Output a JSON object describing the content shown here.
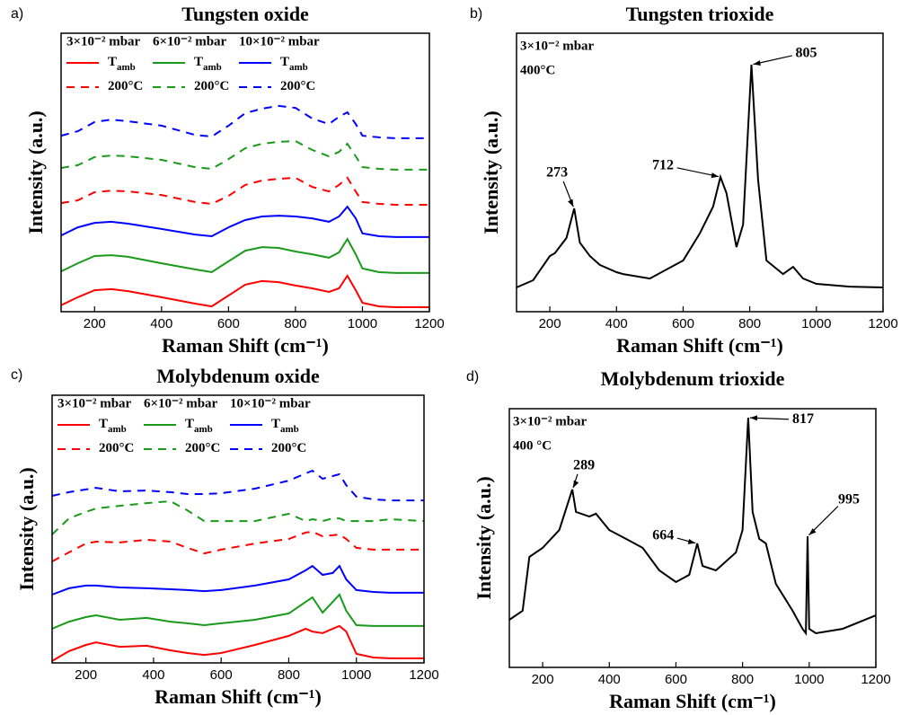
{
  "chart_data": [
    {
      "type": "line",
      "panel_label": "a)",
      "title": "Tungsten oxide",
      "x_label": "Raman Shift (cm⁻¹)",
      "y_label": "Intensity (a.u.)",
      "legend_headers": [
        "3×10⁻² mbar",
        "6×10⁻² mbar",
        "10×10⁻² mbar"
      ],
      "xlim": [
        100,
        1200
      ],
      "ylim": [
        0,
        100
      ],
      "xticks": [
        200,
        400,
        600,
        800,
        1000,
        1200
      ],
      "x": [
        100,
        150,
        200,
        250,
        300,
        400,
        500,
        550,
        600,
        650,
        700,
        750,
        800,
        850,
        900,
        930,
        955,
        980,
        1000,
        1050,
        1100,
        1200
      ],
      "series": [
        {
          "name": "T",
          "subscript": "amb",
          "color": "#ff0000",
          "dashed": false,
          "values": [
            2.3,
            5.2,
            7.7,
            8.1,
            7.4,
            5.2,
            2.9,
            1.9,
            5.8,
            9.7,
            11.0,
            10.6,
            9.4,
            8.4,
            7.1,
            8.4,
            12.9,
            7.7,
            3.2,
            1.9,
            1.6,
            1.6
          ]
        },
        {
          "name": "T",
          "subscript": "amb",
          "color": "#1a9a1a",
          "dashed": false,
          "values": [
            14.5,
            17.4,
            20.0,
            20.3,
            19.7,
            17.4,
            15.2,
            14.2,
            18.1,
            21.9,
            23.2,
            22.9,
            21.6,
            20.6,
            19.4,
            21.3,
            26.1,
            20.6,
            15.5,
            14.2,
            13.9,
            13.9
          ]
        },
        {
          "name": "T",
          "subscript": "amb",
          "color": "#0000ff",
          "dashed": false,
          "values": [
            27.4,
            30.3,
            31.9,
            32.3,
            31.6,
            29.7,
            27.7,
            27.1,
            30.3,
            32.9,
            34.2,
            34.5,
            34.2,
            33.5,
            32.3,
            34.2,
            37.7,
            33.5,
            28.1,
            27.1,
            26.8,
            26.8
          ]
        },
        {
          "name": "200°C",
          "color": "#ff0000",
          "dashed": true,
          "values": [
            39.0,
            40.0,
            42.9,
            43.5,
            43.2,
            41.9,
            39.4,
            38.7,
            41.6,
            45.5,
            47.1,
            47.7,
            48.1,
            44.8,
            43.2,
            45.5,
            48.1,
            43.2,
            39.4,
            38.7,
            38.4,
            38.4
          ]
        },
        {
          "name": "200°C",
          "color": "#1a9a1a",
          "dashed": true,
          "values": [
            51.6,
            52.6,
            55.5,
            56.1,
            55.8,
            54.5,
            51.9,
            51.3,
            54.8,
            58.7,
            60.3,
            61.0,
            61.3,
            58.1,
            55.8,
            57.4,
            60.3,
            55.8,
            51.9,
            51.3,
            51.0,
            51.0
          ]
        },
        {
          "name": "200°C",
          "color": "#0000ff",
          "dashed": true,
          "values": [
            63.2,
            64.8,
            68.1,
            69.0,
            68.4,
            66.8,
            63.5,
            62.9,
            66.8,
            71.3,
            72.9,
            73.9,
            73.2,
            69.4,
            67.4,
            70.0,
            71.6,
            67.4,
            63.2,
            62.6,
            62.3,
            62.3
          ]
        }
      ]
    },
    {
      "type": "line",
      "panel_label": "b)",
      "title": "Tungsten trioxide",
      "x_label": "Raman Shift (cm⁻¹)",
      "y_label": "Intensity (a.u.)",
      "conditions": [
        "3×10⁻² mbar",
        "400°C"
      ],
      "xlim": [
        100,
        1200
      ],
      "ylim": [
        0,
        100
      ],
      "xticks": [
        200,
        400,
        600,
        800,
        1000,
        1200
      ],
      "x": [
        100,
        150,
        200,
        215,
        250,
        273,
        290,
        320,
        350,
        400,
        420,
        500,
        600,
        650,
        690,
        712,
        730,
        760,
        780,
        805,
        825,
        850,
        900,
        930,
        960,
        1000,
        1100,
        1200
      ],
      "series": [
        {
          "color": "#000000",
          "dashed": false,
          "values": [
            8.7,
            11.3,
            20.0,
            21.0,
            26.5,
            37.1,
            24.8,
            20.0,
            16.8,
            14.2,
            13.5,
            11.9,
            18.4,
            28.1,
            37.7,
            48.4,
            42.6,
            23.2,
            31.3,
            88.7,
            47.4,
            18.4,
            13.5,
            16.1,
            11.9,
            10.0,
            9.0,
            8.7
          ]
        }
      ],
      "annotations": [
        {
          "x": 273
        },
        {
          "x": 712
        },
        {
          "x": 805
        }
      ]
    },
    {
      "type": "line",
      "panel_label": "c)",
      "title": "Molybdenum oxide",
      "x_label": "Raman Shift (cm⁻¹)",
      "y_label": "Intensity (a.u.)",
      "legend_headers": [
        "3×10⁻² mbar",
        "6×10⁻² mbar",
        "10×10⁻² mbar"
      ],
      "xlim": [
        100,
        1200
      ],
      "ylim": [
        0,
        100
      ],
      "xticks": [
        200,
        400,
        600,
        800,
        1000,
        1200
      ],
      "x": [
        100,
        150,
        200,
        230,
        300,
        380,
        450,
        500,
        550,
        600,
        700,
        800,
        850,
        870,
        900,
        930,
        950,
        970,
        1000,
        1050,
        1100,
        1200
      ],
      "series": [
        {
          "name": "T",
          "subscript": "amb",
          "color": "#ff0000",
          "dashed": false,
          "values": [
            0.7,
            4.4,
            6.7,
            7.7,
            6.0,
            6.4,
            4.7,
            3.7,
            3.0,
            3.7,
            6.7,
            10.1,
            12.8,
            11.7,
            11.1,
            12.8,
            13.8,
            11.7,
            3.4,
            2.0,
            1.7,
            1.7
          ]
        },
        {
          "name": "T",
          "subscript": "amb",
          "color": "#1a9a1a",
          "dashed": false,
          "values": [
            12.8,
            15.4,
            17.1,
            17.8,
            16.1,
            16.8,
            15.4,
            14.8,
            14.1,
            14.8,
            16.1,
            18.5,
            22.8,
            24.5,
            18.8,
            22.8,
            25.5,
            19.5,
            14.1,
            13.8,
            13.8,
            13.8
          ]
        },
        {
          "name": "T",
          "subscript": "amb",
          "color": "#0000ff",
          "dashed": false,
          "values": [
            25.5,
            27.9,
            28.9,
            28.9,
            28.2,
            27.9,
            27.5,
            27.2,
            26.8,
            27.2,
            28.9,
            31.2,
            34.6,
            36.2,
            32.9,
            33.6,
            36.2,
            31.2,
            27.2,
            26.5,
            26.2,
            26.2
          ]
        },
        {
          "name": "200°C",
          "color": "#ff0000",
          "dashed": true,
          "values": [
            37.9,
            41.3,
            44.6,
            45.3,
            45.0,
            46.0,
            45.3,
            43.0,
            40.9,
            42.3,
            44.6,
            46.3,
            48.7,
            49.0,
            47.3,
            47.7,
            48.0,
            46.3,
            43.0,
            42.3,
            42.3,
            42.3
          ]
        },
        {
          "name": "200°C",
          "color": "#1a9a1a",
          "dashed": true,
          "values": [
            48.0,
            54.0,
            56.4,
            57.7,
            58.7,
            59.7,
            60.4,
            57.0,
            53.0,
            53.0,
            53.0,
            55.7,
            53.0,
            53.7,
            53.0,
            54.0,
            54.0,
            53.0,
            53.0,
            53.0,
            53.7,
            53.0
          ]
        },
        {
          "name": "200°C",
          "color": "#0000ff",
          "dashed": true,
          "values": [
            62.4,
            63.8,
            64.8,
            65.4,
            64.1,
            64.4,
            63.8,
            63.1,
            63.1,
            63.4,
            65.1,
            68.1,
            70.8,
            71.8,
            68.8,
            69.8,
            70.5,
            66.4,
            62.1,
            61.1,
            60.7,
            60.7
          ]
        }
      ]
    },
    {
      "type": "line",
      "panel_label": "d)",
      "title": "Molybdenum trioxide",
      "x_label": "Raman Shift (cm⁻¹)",
      "y_label": "Intensity (a.u.)",
      "conditions": [
        "3×10⁻² mbar",
        "400 °C"
      ],
      "xlim": [
        100,
        1200
      ],
      "ylim": [
        0,
        100
      ],
      "xticks": [
        200,
        400,
        600,
        800,
        1000,
        1200
      ],
      "x": [
        100,
        140,
        160,
        200,
        250,
        289,
        300,
        340,
        360,
        400,
        450,
        500,
        550,
        600,
        640,
        664,
        680,
        720,
        780,
        800,
        817,
        830,
        850,
        870,
        900,
        950,
        980,
        990,
        995,
        1000,
        1020,
        1100,
        1200
      ],
      "series": [
        {
          "color": "#000000",
          "dashed": false,
          "values": [
            18.4,
            21.9,
            42.7,
            46.2,
            53.1,
            68.8,
            60.1,
            58.3,
            59.4,
            53.1,
            49.7,
            46.2,
            37.5,
            33.0,
            35.8,
            47.9,
            39.2,
            37.5,
            44.4,
            53.1,
            96.5,
            60.1,
            49.7,
            47.9,
            32.3,
            21.9,
            14.9,
            13.2,
            50.7,
            14.9,
            13.2,
            14.9,
            20.1
          ]
        }
      ],
      "annotations": [
        {
          "x": 289
        },
        {
          "x": 664
        },
        {
          "x": 817
        },
        {
          "x": 995
        }
      ]
    }
  ]
}
